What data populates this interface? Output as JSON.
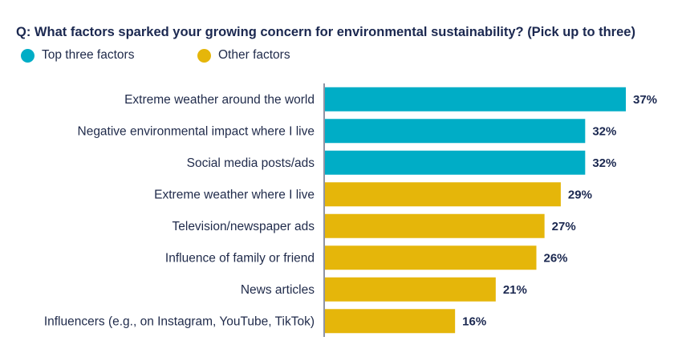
{
  "chart_data": {
    "type": "bar",
    "orientation": "horizontal",
    "title": "Q: What factors sparked your growing concern for environmental sustainability? (Pick up to three)",
    "legend": [
      {
        "label": "Top three factors",
        "color": "#00adc6"
      },
      {
        "label": "Other factors",
        "color": "#e5b60a"
      }
    ],
    "categories": [
      "Extreme weather around the world",
      "Negative environmental impact where I live",
      "Social media posts/ads",
      "Extreme weather where I live",
      "Television/newspaper ads",
      "Influence of family or friend",
      "News articles",
      "Influencers (e.g., on Instagram, YouTube, TikTok)"
    ],
    "values": [
      37,
      32,
      32,
      29,
      27,
      26,
      21,
      16
    ],
    "value_labels": [
      "37%",
      "32%",
      "32%",
      "29%",
      "27%",
      "26%",
      "21%",
      "16%"
    ],
    "groups": [
      0,
      0,
      0,
      1,
      1,
      1,
      1,
      1
    ],
    "xlim": [
      0,
      37
    ]
  }
}
